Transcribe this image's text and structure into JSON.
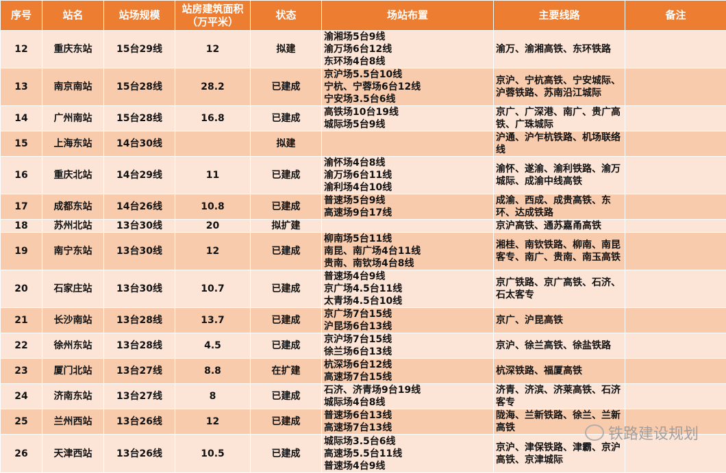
{
  "headers": [
    "序号",
    "站名",
    "站场规模",
    "站房建筑面积\n（万平米）",
    "状态",
    "场站布置",
    "主要线路",
    "备注"
  ],
  "rows": [
    {
      "no": "12",
      "name": "重庆东站",
      "scale": "15台29线",
      "area": "12",
      "status": "拟建",
      "layout": "渝湘场5台9线\n渝万场6台12线\n东环场4台8线",
      "lines": "渝万、渝湘高铁、东环铁路",
      "note": ""
    },
    {
      "no": "13",
      "name": "南京南站",
      "scale": "15台28线",
      "area": "28.2",
      "status": "已建成",
      "layout": "京沪场5.5台10线\n宁杭、宁蓉场6台12线\n宁安场3.5台6线",
      "lines": "京沪、宁杭高铁、宁安城际、沪蓉铁路、苏南沿江城际",
      "note": ""
    },
    {
      "no": "14",
      "name": "广州南站",
      "scale": "15台28线",
      "area": "16.8",
      "status": "已建成",
      "layout": "高铁场10台19线\n城际场5台9线",
      "lines": "京广、广深港、南广、贵广高铁、广珠城际",
      "note": ""
    },
    {
      "no": "15",
      "name": "上海东站",
      "scale": "14台30线",
      "area": "",
      "status": "拟建",
      "layout": "",
      "lines": "沪通、沪乍杭铁路、机场联络线",
      "note": ""
    },
    {
      "no": "16",
      "name": "重庆北站",
      "scale": "14台29线",
      "area": "11",
      "status": "已建成",
      "layout": "渝怀场4台8线\n渝万场6台11线\n渝利场4台10线",
      "lines": "渝怀、遂渝、渝利铁路、渝万城际、成渝中线高铁",
      "note": ""
    },
    {
      "no": "17",
      "name": "成都东站",
      "scale": "14台26线",
      "area": "10.8",
      "status": "已建成",
      "layout": "普速场5台9线\n高速场9台17线",
      "lines": "成渝、西成、成贵高铁、东环、达成铁路",
      "note": ""
    },
    {
      "no": "18",
      "name": "苏州北站",
      "scale": "13台30线",
      "area": "20",
      "status": "拟扩建",
      "layout": "",
      "lines": "京沪高铁、通苏嘉甬高铁",
      "note": ""
    },
    {
      "no": "19",
      "name": "南宁东站",
      "scale": "13台30线",
      "area": "12",
      "status": "已建成",
      "layout": "柳南场5台11线\n南昆、南广场4台11线\n贵南、南钦场4台8线",
      "lines": "湘桂、南钦铁路、柳南、南昆客专、南广、贵南、南玉高铁",
      "note": ""
    },
    {
      "no": "20",
      "name": "石家庄站",
      "scale": "13台30线",
      "area": "10.7",
      "status": "已建成",
      "layout": "普速场4台9线\n京广场4.5台11线\n太青场4.5台10线",
      "lines": "京广铁路、京广高铁、石济、石太客专",
      "note": ""
    },
    {
      "no": "21",
      "name": "长沙南站",
      "scale": "13台28线",
      "area": "13.7",
      "status": "已建成",
      "layout": "京广场7台15线\n沪昆场6台13线",
      "lines": "京广、沪昆高铁",
      "note": ""
    },
    {
      "no": "22",
      "name": "徐州东站",
      "scale": "13台28线",
      "area": "4.5",
      "status": "已建成",
      "layout": "京沪场7台15线\n徐兰场6台13线",
      "lines": "京沪、徐兰高铁、徐盐铁路",
      "note": ""
    },
    {
      "no": "23",
      "name": "厦门北站",
      "scale": "13台27线",
      "area": "8.8",
      "status": "在扩建",
      "layout": "杭深场6台12线\n高速场7台15线",
      "lines": "杭深铁路、福厦高铁",
      "note": ""
    },
    {
      "no": "24",
      "name": "济南东站",
      "scale": "13台27线",
      "area": "8",
      "status": "已建成",
      "layout": "石济、济青场9台19线\n城际场4台8线",
      "lines": "济青、济滨、济莱高铁、石济客专",
      "note": ""
    },
    {
      "no": "25",
      "name": "兰州西站",
      "scale": "13台26线",
      "area": "12",
      "status": "已建成",
      "layout": "普速场6台13线\n高速场7台13线",
      "lines": "陇海、兰新铁路、徐兰、兰新高铁",
      "note": ""
    },
    {
      "no": "26",
      "name": "天津西站",
      "scale": "13台26线",
      "area": "10.5",
      "status": "已建成",
      "layout": "城际场3.5台6线\n高速场5.5台11线\n普速场4台9线",
      "lines": "京沪、津保铁路、津霸、京沪高铁、京津城际",
      "note": ""
    }
  ],
  "watermark": "铁路建设规划",
  "colors": {
    "header": "#ed7d31",
    "row_light": "#fce4d6",
    "row_dark": "#f8cbad"
  }
}
